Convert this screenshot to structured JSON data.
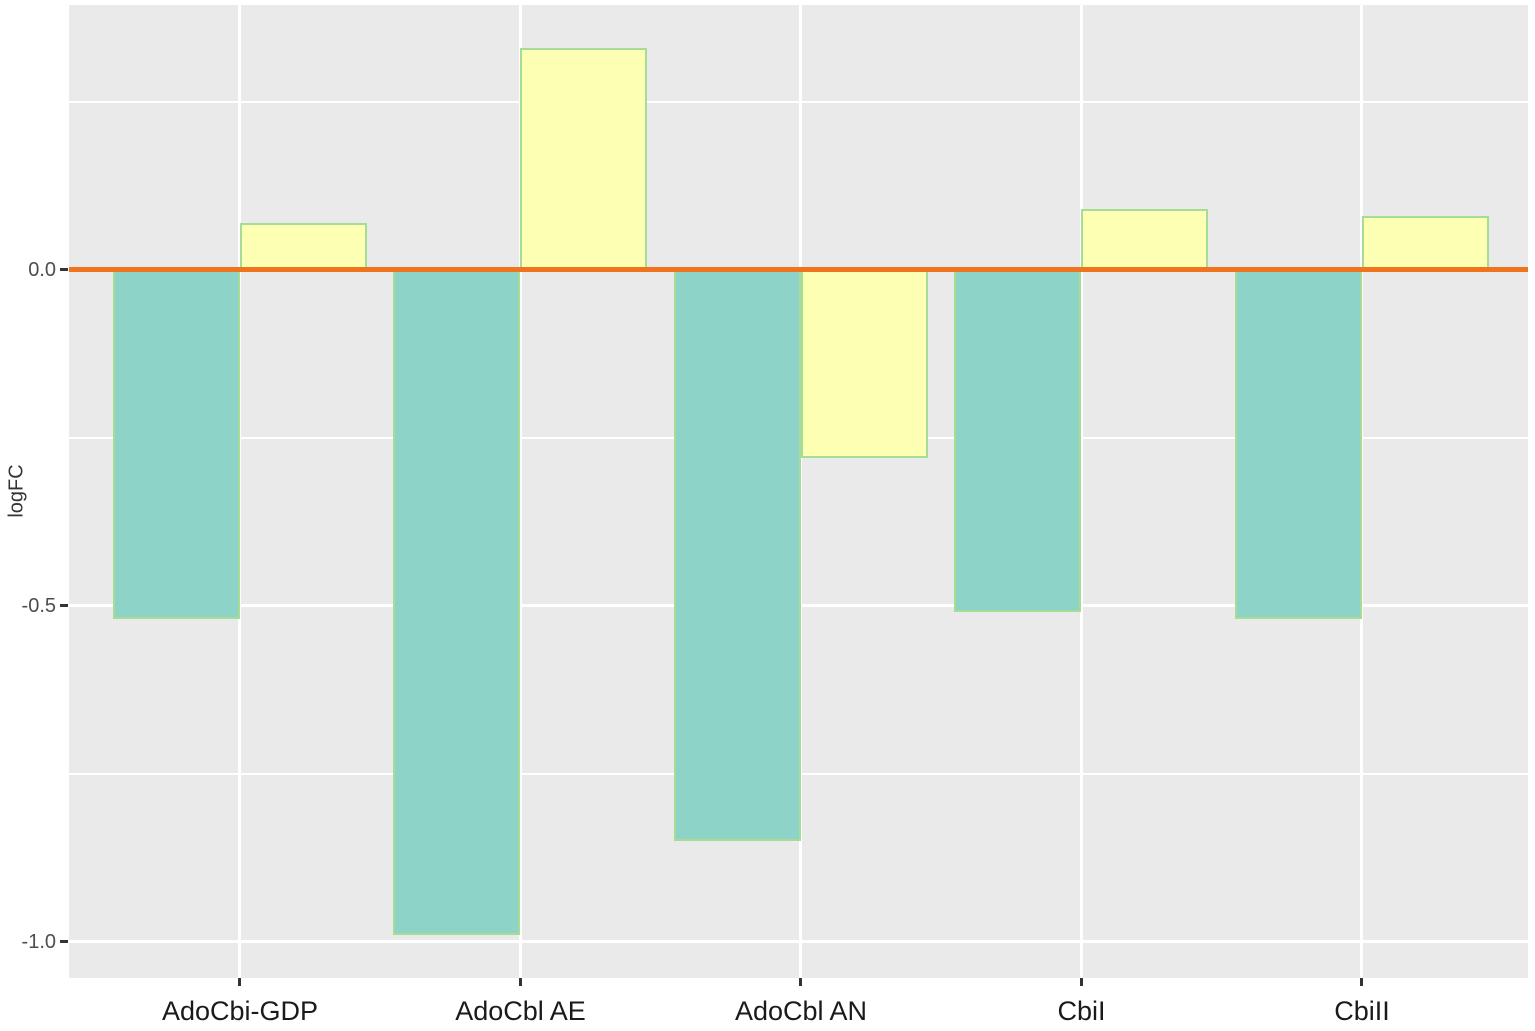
{
  "chart_data": {
    "type": "bar",
    "title": "",
    "categories": [
      "AdoCbi-GDP",
      "AdoCbl AE",
      "AdoCbl AN",
      "CbiI",
      "CbiII"
    ],
    "series": [
      {
        "name": "teal",
        "color": "#8DD3C7",
        "values": [
          -0.52,
          -0.99,
          -0.85,
          -0.51,
          -0.52
        ]
      },
      {
        "name": "yellow",
        "color": "#FDFFB2",
        "values": [
          0.07,
          0.33,
          -0.28,
          0.09,
          0.08
        ]
      }
    ],
    "bar_border_color": "#A6DC96",
    "xlabel": "",
    "ylabel": "logFC",
    "y_ticks": [
      {
        "value": 0.0,
        "label": "0.0"
      },
      {
        "value": -0.5,
        "label": "-0.5"
      },
      {
        "value": -1.0,
        "label": "-1.0"
      }
    ],
    "y_minor_gridlines": [
      0.25,
      -0.25,
      -0.75
    ],
    "ylim": [
      -1.054,
      0.394
    ],
    "zero_line": {
      "value": 0.0,
      "color": "#F0731E"
    },
    "panel_background": "#EAEAEA",
    "gridline_color": "#FFFFFF",
    "grid": "on",
    "legend": "none",
    "bar_layout": "dodged"
  }
}
